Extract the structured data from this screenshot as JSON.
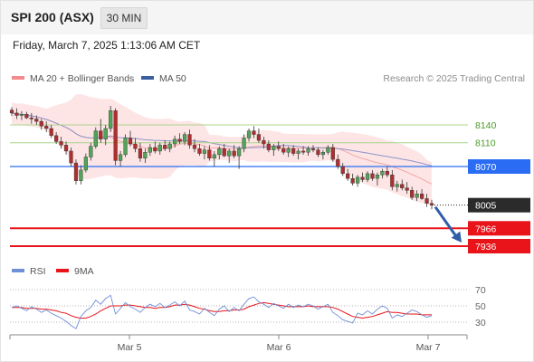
{
  "header": {
    "symbol": "SPI 200 (ASX)",
    "timeframe": "30 MIN"
  },
  "datetime": "Friday, March 7, 2025 1:13:06 AM CET",
  "legend": [
    {
      "label": "MA 20 + Bollinger Bands",
      "color": "#f28b8b"
    },
    {
      "label": "MA 50",
      "color": "#3a5fa0"
    }
  ],
  "attribution": "Research © 2025 Trading Central",
  "colors": {
    "bull": "#52a35a",
    "bear": "#ad2f2f",
    "band_fill": "#fde5e5",
    "ma20": "#f4a6a6",
    "ma50": "#8e94c8",
    "resistance": "#a9d58a",
    "pivot": "#2a6df4",
    "support": "#e8141a",
    "arrow": "#2f5da8"
  },
  "chart_data": [
    {
      "type": "candlestick",
      "title": "SPI 200 (ASX) 30 MIN",
      "x_tick_labels": [
        "Mar 5",
        "Mar 6",
        "Mar 7"
      ],
      "ylim": [
        7925,
        8180
      ],
      "ohlc": [
        [
          8165,
          8170,
          8155,
          8160
        ],
        [
          8160,
          8168,
          8150,
          8156
        ],
        [
          8156,
          8163,
          8148,
          8158
        ],
        [
          8158,
          8162,
          8150,
          8152
        ],
        [
          8152,
          8160,
          8142,
          8150
        ],
        [
          8150,
          8156,
          8140,
          8146
        ],
        [
          8146,
          8150,
          8132,
          8138
        ],
        [
          8138,
          8146,
          8128,
          8134
        ],
        [
          8134,
          8140,
          8118,
          8122
        ],
        [
          8122,
          8128,
          8108,
          8112
        ],
        [
          8112,
          8120,
          8100,
          8106
        ],
        [
          8106,
          8112,
          8090,
          8096
        ],
        [
          8096,
          8102,
          8070,
          8076
        ],
        [
          8076,
          8082,
          8040,
          8046
        ],
        [
          8046,
          8072,
          8040,
          8064
        ],
        [
          8064,
          8092,
          8060,
          8086
        ],
        [
          8086,
          8110,
          8080,
          8104
        ],
        [
          8104,
          8136,
          8100,
          8130
        ],
        [
          8130,
          8150,
          8110,
          8116
        ],
        [
          8116,
          8140,
          8106,
          8134
        ],
        [
          8134,
          8172,
          8128,
          8164
        ],
        [
          8164,
          8168,
          8072,
          8080
        ],
        [
          8080,
          8096,
          8070,
          8090
        ],
        [
          8090,
          8124,
          8086,
          8118
        ],
        [
          8118,
          8130,
          8104,
          8108
        ],
        [
          8108,
          8118,
          8094,
          8100
        ],
        [
          8100,
          8110,
          8078,
          8084
        ],
        [
          8084,
          8100,
          8076,
          8094
        ],
        [
          8094,
          8108,
          8088,
          8102
        ],
        [
          8102,
          8112,
          8092,
          8096
        ],
        [
          8096,
          8110,
          8090,
          8106
        ],
        [
          8106,
          8114,
          8096,
          8100
        ],
        [
          8100,
          8112,
          8094,
          8108
        ],
        [
          8108,
          8122,
          8102,
          8116
        ],
        [
          8116,
          8126,
          8108,
          8112
        ],
        [
          8112,
          8128,
          8106,
          8124
        ],
        [
          8124,
          8132,
          8100,
          8106
        ],
        [
          8106,
          8116,
          8094,
          8100
        ],
        [
          8100,
          8108,
          8088,
          8092
        ],
        [
          8092,
          8104,
          8082,
          8098
        ],
        [
          8098,
          8106,
          8080,
          8084
        ],
        [
          8084,
          8096,
          8070,
          8090
        ],
        [
          8090,
          8104,
          8082,
          8100
        ],
        [
          8100,
          8108,
          8086,
          8088
        ],
        [
          8088,
          8100,
          8076,
          8096
        ],
        [
          8096,
          8106,
          8084,
          8088
        ],
        [
          8088,
          8104,
          8066,
          8100
        ],
        [
          8100,
          8124,
          8094,
          8118
        ],
        [
          8118,
          8134,
          8112,
          8130
        ],
        [
          8130,
          8138,
          8118,
          8124
        ],
        [
          8124,
          8134,
          8110,
          8114
        ],
        [
          8114,
          8120,
          8100,
          8108
        ],
        [
          8108,
          8114,
          8094,
          8098
        ],
        [
          8098,
          8108,
          8088,
          8104
        ],
        [
          8104,
          8112,
          8096,
          8100
        ],
        [
          8100,
          8108,
          8090,
          8094
        ],
        [
          8094,
          8104,
          8086,
          8100
        ],
        [
          8100,
          8106,
          8088,
          8092
        ],
        [
          8092,
          8100,
          8082,
          8096
        ],
        [
          8096,
          8104,
          8090,
          8094
        ],
        [
          8094,
          8104,
          8088,
          8100
        ],
        [
          8100,
          8106,
          8094,
          8098
        ],
        [
          8098,
          8102,
          8086,
          8090
        ],
        [
          8090,
          8098,
          8082,
          8094
        ],
        [
          8094,
          8106,
          8090,
          8102
        ],
        [
          8102,
          8108,
          8078,
          8082
        ],
        [
          8082,
          8090,
          8066,
          8070
        ],
        [
          8070,
          8076,
          8054,
          8058
        ],
        [
          8058,
          8066,
          8046,
          8050
        ],
        [
          8050,
          8058,
          8038,
          8042
        ],
        [
          8042,
          8056,
          8036,
          8052
        ],
        [
          8052,
          8060,
          8044,
          8048
        ],
        [
          8048,
          8062,
          8044,
          8058
        ],
        [
          8058,
          8064,
          8046,
          8050
        ],
        [
          8050,
          8060,
          8038,
          8056
        ],
        [
          8056,
          8066,
          8050,
          8062
        ],
        [
          8062,
          8070,
          8052,
          8056
        ],
        [
          8056,
          8064,
          8030,
          8036
        ],
        [
          8036,
          8046,
          8028,
          8040
        ],
        [
          8040,
          8048,
          8030,
          8034
        ],
        [
          8034,
          8044,
          8024,
          8030
        ],
        [
          8030,
          8036,
          8014,
          8018
        ],
        [
          8018,
          8030,
          8012,
          8024
        ],
        [
          8024,
          8032,
          8014,
          8016
        ],
        [
          8016,
          8024,
          8002,
          8008
        ],
        [
          8008,
          8014,
          7998,
          8005
        ]
      ]
    },
    {
      "type": "line",
      "title": "RSI",
      "legend": [
        "RSI",
        "9MA"
      ],
      "y_tick_labels": [
        "70",
        "50",
        "30"
      ],
      "ylim": [
        20,
        80
      ],
      "rsi": [
        48,
        50,
        47,
        44,
        49,
        46,
        42,
        45,
        41,
        38,
        35,
        31,
        26,
        22,
        37,
        44,
        48,
        57,
        52,
        59,
        63,
        40,
        47,
        54,
        49,
        46,
        42,
        48,
        52,
        49,
        53,
        48,
        51,
        55,
        50,
        56,
        45,
        43,
        40,
        47,
        42,
        38,
        46,
        50,
        43,
        48,
        44,
        52,
        59,
        61,
        55,
        52,
        48,
        53,
        50,
        47,
        52,
        48,
        51,
        49,
        52,
        50,
        46,
        49,
        52,
        42,
        38,
        33,
        31,
        29,
        41,
        39,
        44,
        40,
        46,
        50,
        47,
        35,
        39,
        37,
        41,
        45,
        43,
        39,
        36,
        38
      ],
      "ma9": [
        48,
        48,
        48,
        47,
        47,
        47,
        46,
        46,
        45,
        44,
        42,
        41,
        38,
        36,
        35,
        35,
        37,
        40,
        44,
        47,
        50,
        50,
        50,
        51,
        51,
        50,
        49,
        48,
        48,
        47,
        48,
        48,
        49,
        51,
        51,
        52,
        51,
        49,
        47,
        46,
        44,
        43,
        43,
        44,
        44,
        45,
        45,
        46,
        49,
        51,
        53,
        54,
        53,
        52,
        51,
        50,
        49,
        49,
        49,
        49,
        50,
        49,
        49,
        49,
        49,
        48,
        46,
        43,
        40,
        37,
        36,
        35,
        36,
        37,
        39,
        41,
        43,
        42,
        42,
        41,
        40,
        40,
        40,
        39,
        39,
        39
      ]
    }
  ],
  "levels": {
    "resistance": [
      {
        "value": 8140,
        "label": "8140"
      },
      {
        "value": 8110,
        "label": "8110"
      }
    ],
    "pivot": {
      "value": 8070,
      "label": "8070"
    },
    "last": {
      "value": 8005,
      "label": "8005"
    },
    "support": [
      {
        "value": 7966,
        "label": "7966"
      },
      {
        "value": 7936,
        "label": "7936"
      }
    ]
  },
  "rsi_legend": [
    {
      "label": "RSI",
      "color": "#6f8fd6"
    },
    {
      "label": "9MA",
      "color": "#e8141a"
    }
  ]
}
